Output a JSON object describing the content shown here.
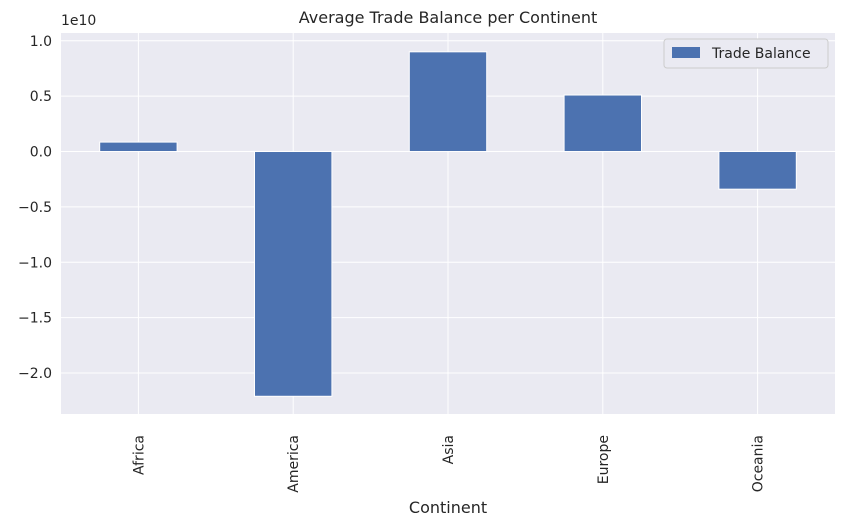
{
  "chart_data": {
    "type": "bar",
    "title": "Average Trade Balance per Continent",
    "xlabel": "Continent",
    "ylabel": "",
    "scale_label": "1e10",
    "categories": [
      "Africa",
      "America",
      "Asia",
      "Europe",
      "Oceania"
    ],
    "series": [
      {
        "name": "Trade Balance",
        "values": [
          0.85,
          -22.1,
          9.0,
          5.1,
          -3.4
        ],
        "color": "#4c72b0"
      }
    ],
    "ylim": [
      -23.7,
      10.7
    ],
    "yticks": [
      1.0,
      0.5,
      0.0,
      -0.5,
      -1.0,
      -1.5,
      -2.0
    ],
    "ytick_labels": [
      "1.0",
      "0.5",
      "0.0",
      "−0.5",
      "−1.0",
      "−1.5",
      "−2.0"
    ],
    "grid": true,
    "legend_position": "top-right",
    "colors": {
      "plot_background": "#eaeaf2",
      "grid": "#ffffff",
      "bar": "#4c72b0"
    }
  }
}
